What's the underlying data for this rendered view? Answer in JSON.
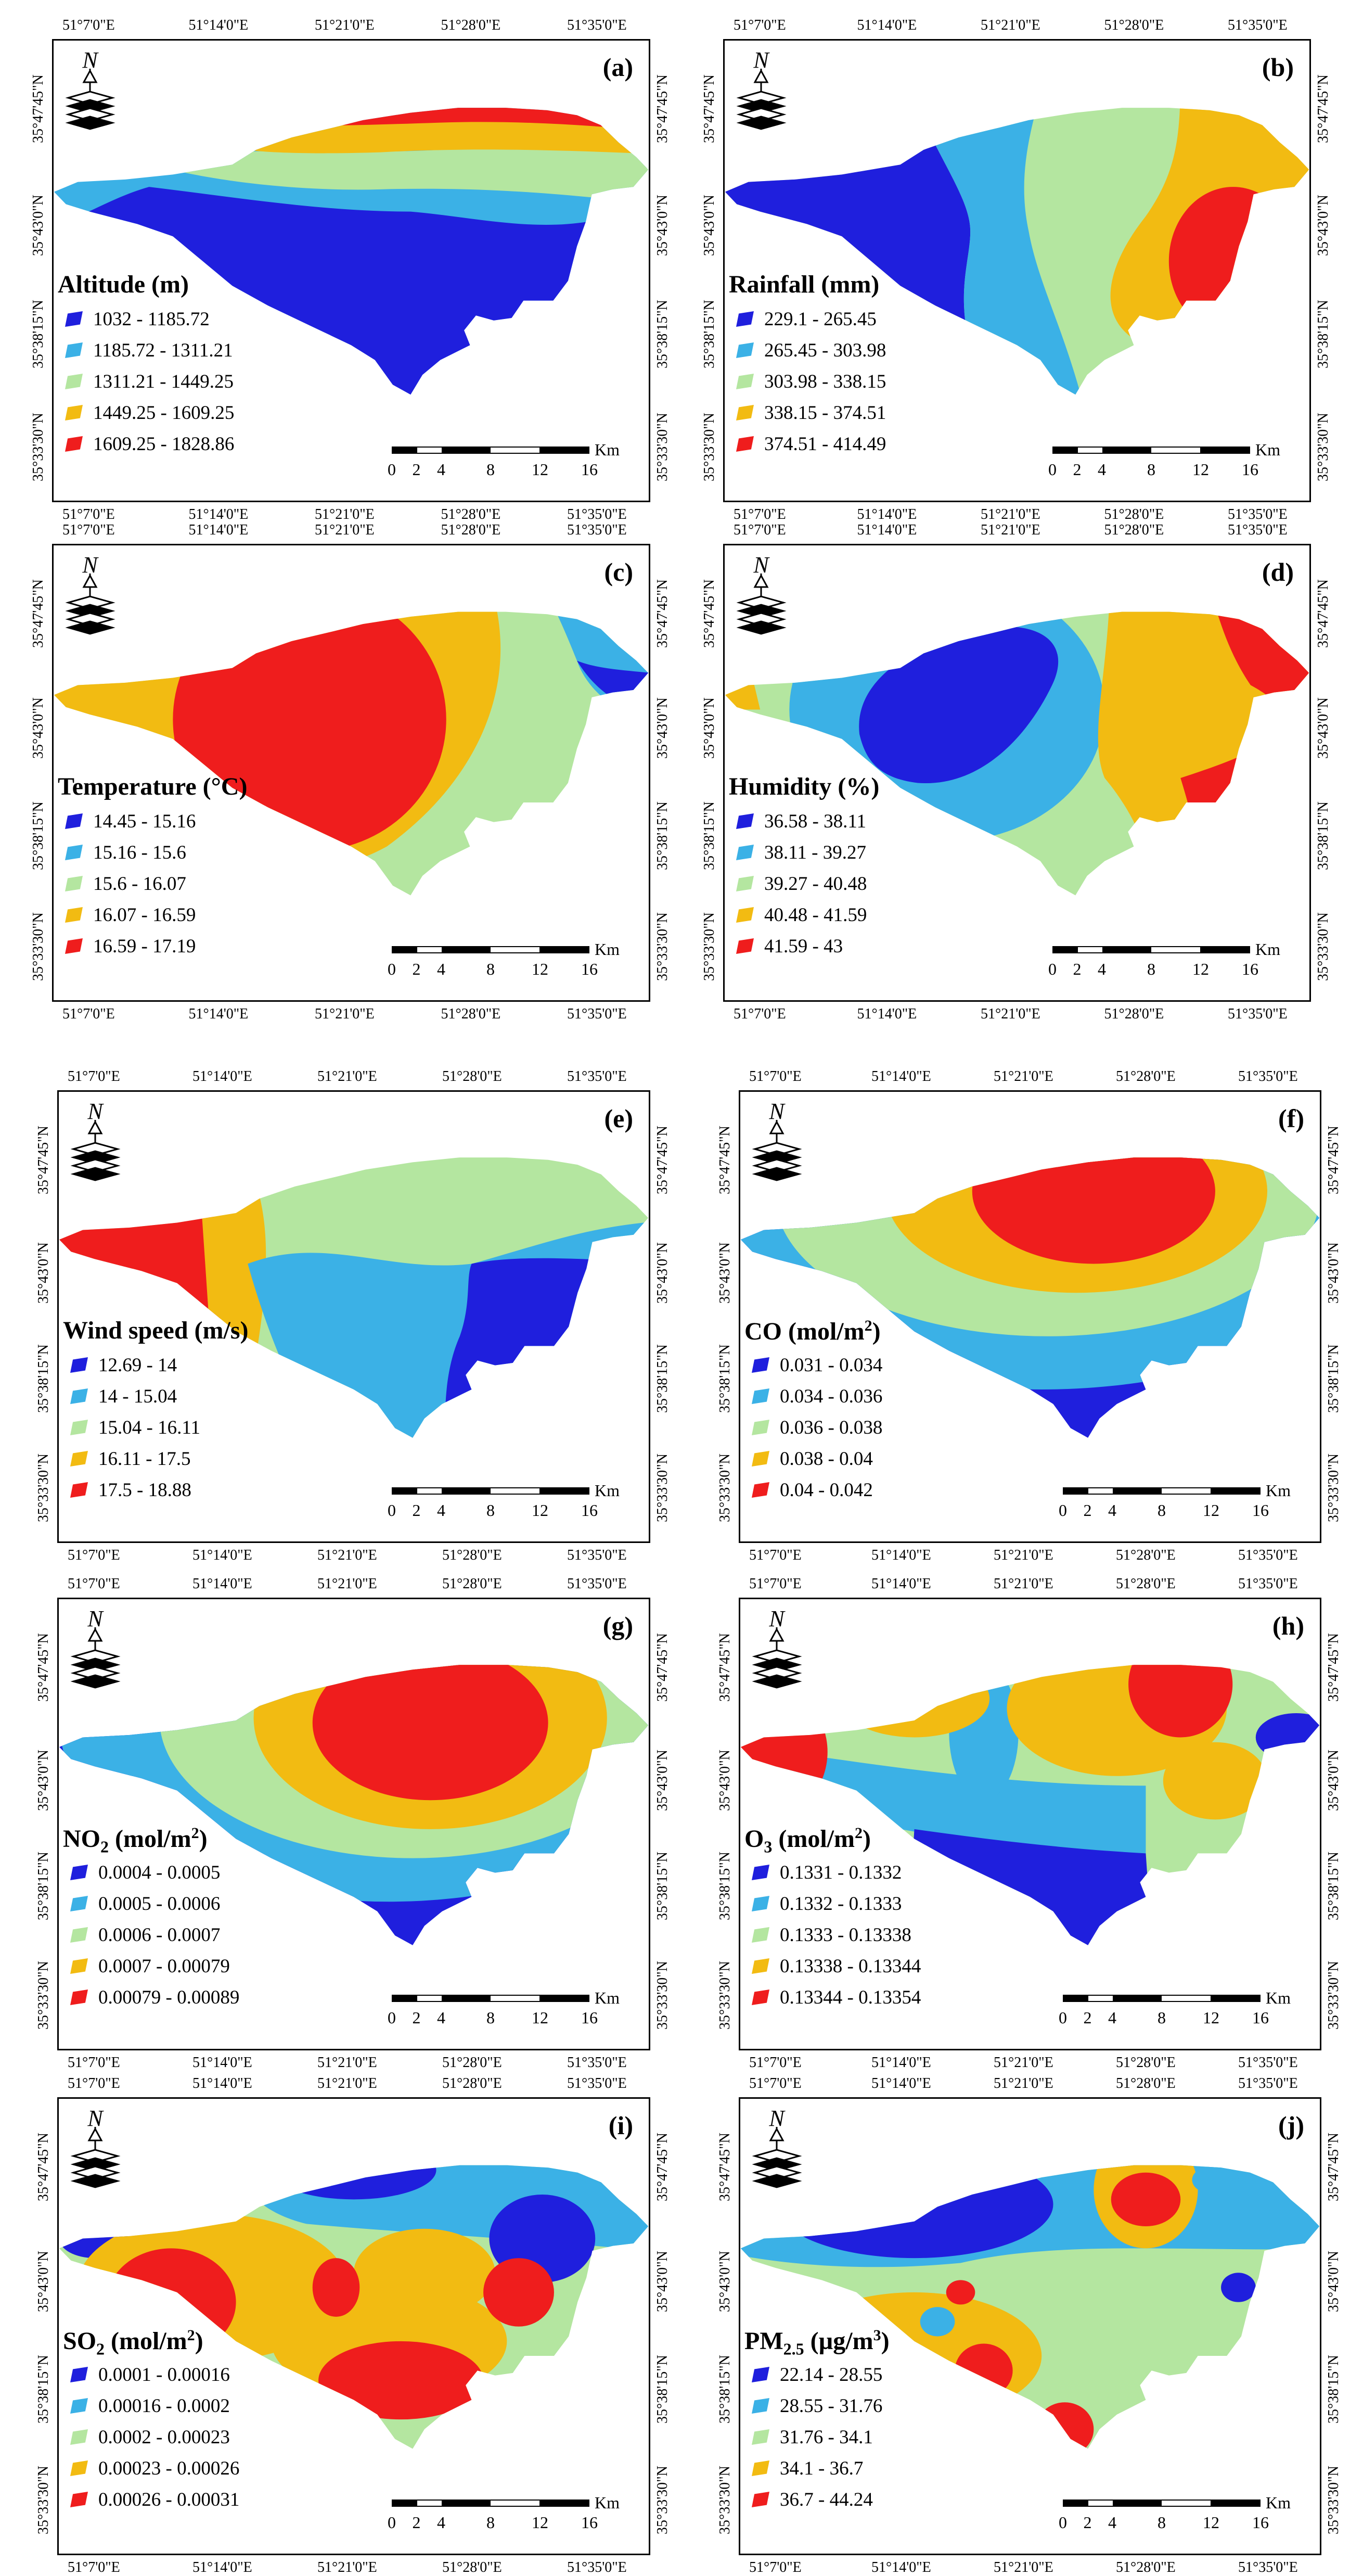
{
  "lon_ticks": [
    "51°7'0\"E",
    "51°14'0\"E",
    "51°21'0\"E",
    "51°28'0\"E",
    "51°35'0\"E"
  ],
  "lat_ticks": [
    "35°47'45\"N",
    "35°43'0\"N",
    "35°38'15\"N",
    "35°33'30\"N"
  ],
  "scale": {
    "unit": "Km",
    "ticks": [
      "0",
      "2",
      "4",
      "8",
      "12",
      "16"
    ]
  },
  "north_label": "N",
  "legend_colors": [
    "#1f1fdd",
    "#3bb1e6",
    "#b4e6a0",
    "#f2bb12",
    "#ef1d1d"
  ],
  "panels": [
    {
      "letter": "(a)",
      "title": "Altitude (m)",
      "classes": [
        "1032 - 1185.72",
        "1185.72 - 1311.21",
        "1311.21 - 1449.25",
        "1449.25 - 1609.25",
        "1609.25 - 1828.86"
      ]
    },
    {
      "letter": "(b)",
      "title": "Rainfall (mm)",
      "classes": [
        "229.1 - 265.45",
        "265.45 - 303.98",
        "303.98 - 338.15",
        "338.15 - 374.51",
        "374.51 - 414.49"
      ]
    },
    {
      "letter": "(c)",
      "title": "Temperature (°C)",
      "classes": [
        "14.45 - 15.16",
        "15.16 - 15.6",
        "15.6 - 16.07",
        "16.07 - 16.59",
        "16.59 - 17.19"
      ]
    },
    {
      "letter": "(d)",
      "title": "Humidity (%)",
      "classes": [
        "36.58 - 38.11",
        "38.11 - 39.27",
        "39.27 - 40.48",
        "40.48 - 41.59",
        "41.59 - 43"
      ]
    },
    {
      "letter": "(e)",
      "title": "Wind speed (m/s)",
      "classes": [
        "12.69 - 14",
        "14 - 15.04",
        "15.04 - 16.11",
        "16.11 - 17.5",
        "17.5 - 18.88"
      ]
    },
    {
      "letter": "(f)",
      "title": "CO (mol/m",
      "title_sup": "2",
      "title_end": ")",
      "classes": [
        "0.031 - 0.034",
        "0.034 - 0.036",
        "0.036 - 0.038",
        "0.038 - 0.04",
        "0.04 - 0.042"
      ]
    },
    {
      "letter": "(g)",
      "title": "NO",
      "title_sub": "2",
      "title_end": " (mol/m",
      "title_sup": "2",
      "title_tail": ")",
      "classes": [
        "0.0004 - 0.0005",
        "0.0005 - 0.0006",
        "0.0006 - 0.0007",
        "0.0007 - 0.00079",
        "0.00079 - 0.00089"
      ]
    },
    {
      "letter": "(h)",
      "title": "O",
      "title_sub": "3",
      "title_end": " (mol/m",
      "title_sup": "2",
      "title_tail": ")",
      "classes": [
        "0.1331 - 0.1332",
        "0.1332 - 0.1333",
        "0.1333 - 0.13338",
        "0.13338 - 0.13344",
        "0.13344 - 0.13354"
      ]
    },
    {
      "letter": "(i)",
      "title": "SO",
      "title_sub": "2",
      "title_end": " (mol/m",
      "title_sup": "2",
      "title_tail": ")",
      "classes": [
        "0.0001 - 0.00016",
        "0.00016 - 0.0002",
        "0.0002 - 0.00023",
        "0.00023 - 0.00026",
        "0.00026 - 0.00031"
      ]
    },
    {
      "letter": "(j)",
      "title": "PM",
      "title_sub": "2.5",
      "title_end": " (µg/m",
      "title_sup": "3",
      "title_tail": ")",
      "classes": [
        "22.14 - 28.55",
        "28.55 - 31.76",
        "31.76 - 34.1",
        "34.1 - 36.7",
        "36.7 - 44.24"
      ]
    }
  ]
}
